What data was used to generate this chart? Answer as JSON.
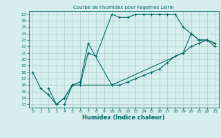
{
  "title": "Courbe de l'humidex pour Fagernes Leirin",
  "xlabel": "Humidex (Indice chaleur)",
  "bg_color": "#d6eeee",
  "line_color": "#006666",
  "grid_color": "#aacccc",
  "xlim": [
    -0.5,
    23.5
  ],
  "ylim": [
    12.5,
    27.5
  ],
  "xticks": [
    0,
    1,
    2,
    3,
    4,
    5,
    6,
    7,
    8,
    9,
    10,
    11,
    12,
    13,
    14,
    15,
    16,
    17,
    18,
    19,
    20,
    21,
    22,
    23
  ],
  "yticks": [
    13,
    14,
    15,
    16,
    17,
    18,
    19,
    20,
    21,
    22,
    23,
    24,
    25,
    26,
    27
  ],
  "line1": {
    "x": [
      0,
      1,
      2,
      3,
      4,
      5,
      6,
      7,
      8,
      10,
      11,
      12,
      13,
      14,
      15,
      16,
      17,
      18,
      19,
      20,
      21,
      22,
      23
    ],
    "y": [
      18,
      15.5,
      14.5,
      13,
      14,
      16,
      16,
      21,
      20.5,
      27,
      26.5,
      26.5,
      27,
      27,
      27,
      27,
      27,
      27,
      25,
      24,
      23,
      23,
      22.5
    ]
  },
  "line2": {
    "x": [
      2,
      3,
      4,
      5,
      6,
      7,
      10,
      11,
      12,
      13,
      14,
      15,
      16,
      17,
      18,
      19,
      20,
      21,
      22,
      23
    ],
    "y": [
      15.5,
      13,
      14,
      16,
      16.5,
      22.5,
      16,
      16,
      16.5,
      17,
      17.5,
      18,
      18.5,
      19.5,
      20.5,
      21,
      22,
      22.5,
      23,
      22
    ]
  },
  "line3": {
    "x": [
      4,
      5,
      10,
      19,
      20,
      21,
      22,
      23
    ],
    "y": [
      13,
      16,
      16,
      21,
      24,
      23,
      23,
      22.5
    ]
  }
}
